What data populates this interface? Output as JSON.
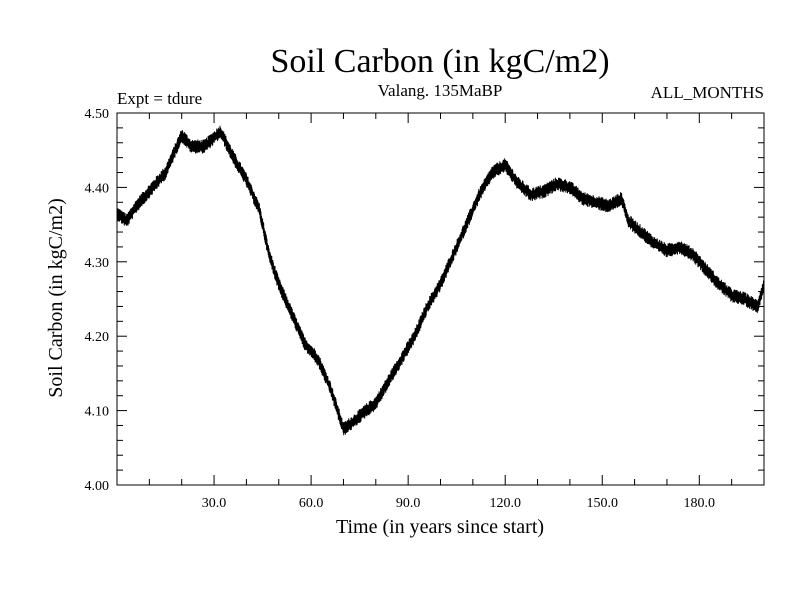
{
  "chart_data": {
    "type": "line",
    "title": "Soil Carbon (in kgC/m2)",
    "subtitle": "Valang.  135MaBP",
    "experiment_label": "Expt = tdure",
    "period_label": "ALL_MONTHS",
    "xlabel": "Time (in years since start)",
    "ylabel": "Soil Carbon (in kgC/m2)",
    "xlim": [
      0,
      200
    ],
    "ylim": [
      4.0,
      4.5
    ],
    "x_ticks": [
      30,
      60,
      90,
      120,
      150,
      180
    ],
    "x_tick_labels": [
      "30.0",
      "60.0",
      "90.0",
      "120.0",
      "150.0",
      "180.0"
    ],
    "y_ticks": [
      4.0,
      4.1,
      4.2,
      4.3,
      4.4,
      4.5
    ],
    "y_tick_labels": [
      "4.00",
      "4.10",
      "4.20",
      "4.30",
      "4.40",
      "4.50"
    ],
    "grid": false,
    "line_color": "#000000",
    "noise_amplitude": 0.009,
    "series": [
      {
        "name": "Soil Carbon",
        "x": [
          0,
          3,
          6,
          10,
          15,
          20,
          23,
          27,
          32,
          36,
          40,
          44,
          47,
          50,
          54,
          58,
          62,
          66,
          70,
          73,
          77,
          80,
          84,
          88,
          92,
          96,
          100,
          104,
          108,
          112,
          116,
          120,
          124,
          128,
          132,
          136,
          140,
          144,
          148,
          152,
          156,
          158,
          162,
          166,
          170,
          174,
          178,
          182,
          186,
          190,
          194,
          198,
          200
        ],
        "values": [
          4.365,
          4.355,
          4.375,
          4.395,
          4.42,
          4.47,
          4.455,
          4.455,
          4.475,
          4.44,
          4.41,
          4.37,
          4.31,
          4.27,
          4.23,
          4.19,
          4.17,
          4.13,
          4.075,
          4.085,
          4.1,
          4.11,
          4.14,
          4.17,
          4.2,
          4.24,
          4.27,
          4.31,
          4.35,
          4.39,
          4.42,
          4.43,
          4.405,
          4.39,
          4.395,
          4.405,
          4.4,
          4.385,
          4.38,
          4.375,
          4.385,
          4.355,
          4.34,
          4.325,
          4.315,
          4.32,
          4.31,
          4.29,
          4.27,
          4.255,
          4.25,
          4.24,
          4.27
        ]
      }
    ]
  }
}
